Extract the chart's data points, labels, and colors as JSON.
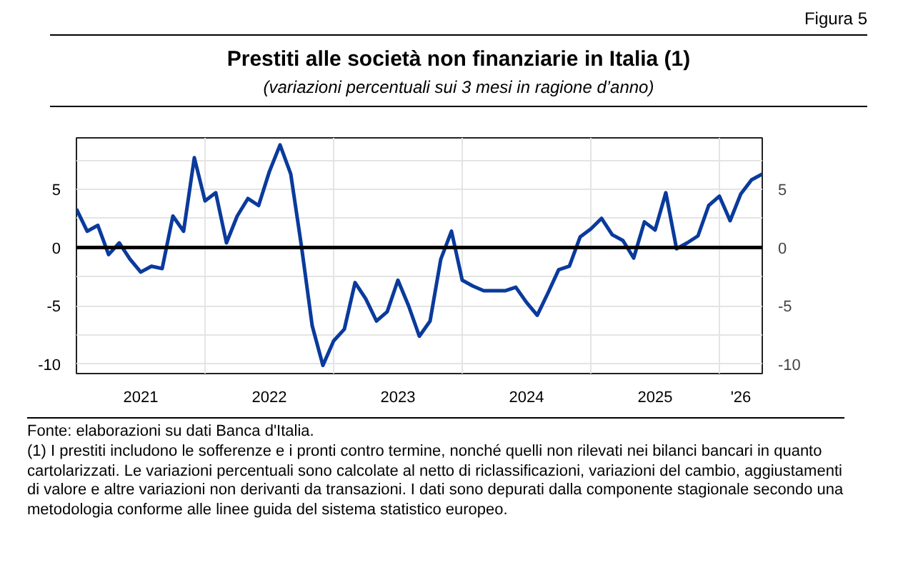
{
  "chart_data": {
    "type": "line",
    "title": "Prestiti alle società non finanziarie in Italia (1)",
    "subtitle": "(variazioni percentuali sui 3 mesi in ragione d’anno)",
    "annotations": [
      "Figura 5",
      "Fonte: elaborazioni su dati Banca d'Italia.",
      "(1) I prestiti includono le sofferenze e i pronti contro termine, nonché quelli non rilevati nei bilanci bancari in quanto cartolarizzati. Le variazioni percentuali sono calcolate al netto di riclassificazioni, variazioni del cambio, aggiustamenti di valore e altre variazioni non derivanti da transazioni. I dati sono depurati dalla componente stagionale secondo una metodologia conforme alle linee guida del sistema statistico europeo."
    ],
    "x": [
      "2021-01",
      "2021-02",
      "2021-03",
      "2021-04",
      "2021-05",
      "2021-06",
      "2021-07",
      "2021-08",
      "2021-09",
      "2021-10",
      "2021-11",
      "2021-12",
      "2022-01",
      "2022-02",
      "2022-03",
      "2022-04",
      "2022-05",
      "2022-06",
      "2022-07",
      "2022-08",
      "2022-09",
      "2022-10",
      "2022-11",
      "2022-12",
      "2023-01",
      "2023-02",
      "2023-03",
      "2023-04",
      "2023-05",
      "2023-06",
      "2023-07",
      "2023-08",
      "2023-09",
      "2023-10",
      "2023-11",
      "2023-12",
      "2024-01",
      "2024-02",
      "2024-03",
      "2024-04",
      "2024-05",
      "2024-06",
      "2024-07",
      "2024-08",
      "2024-09",
      "2024-10",
      "2024-11",
      "2024-12",
      "2025-01",
      "2025-02",
      "2025-03",
      "2025-04",
      "2025-05",
      "2025-06",
      "2025-07",
      "2025-08",
      "2025-09",
      "2025-10",
      "2025-11",
      "2025-12",
      "2026-01",
      "2026-02",
      "2026-03",
      "2026-04",
      "2026-05"
    ],
    "series": [
      {
        "color": "#0a3a9c",
        "values": [
          3.3,
          1.4,
          1.9,
          -0.6,
          0.4,
          -1.0,
          -2.1,
          -1.6,
          -1.8,
          2.7,
          1.4,
          7.7,
          4.0,
          4.7,
          0.4,
          2.7,
          4.2,
          3.6,
          6.5,
          8.8,
          6.3,
          0.1,
          -6.7,
          -10.1,
          -8.0,
          -7.0,
          -3.0,
          -4.4,
          -6.3,
          -5.5,
          -2.8,
          -5.0,
          -7.6,
          -6.3,
          -1.0,
          1.4,
          -2.8,
          -3.3,
          -3.7,
          -3.7,
          -3.7,
          -3.4,
          -4.7,
          -5.8,
          -3.9,
          -1.9,
          -1.6,
          0.9,
          1.6,
          2.5,
          1.1,
          0.6,
          -0.9,
          2.2,
          1.5,
          4.7,
          -0.1,
          0.4,
          1.0,
          3.6,
          4.4,
          2.3,
          4.6,
          5.8,
          6.3
        ]
      }
    ],
    "xlim": [
      "2021-01",
      "2026-05"
    ],
    "xticks": [
      {
        "value": "2021-07",
        "label": "2021"
      },
      {
        "value": "2022-01",
        "label": null
      },
      {
        "value": "2022-07",
        "label": "2022"
      },
      {
        "value": "2023-01",
        "label": null
      },
      {
        "value": "2023-07",
        "label": "2023"
      },
      {
        "value": "2024-01",
        "label": null
      },
      {
        "value": "2024-07",
        "label": "2024"
      },
      {
        "value": "2025-01",
        "label": null
      },
      {
        "value": "2025-07",
        "label": "2025"
      },
      {
        "value": "2026-01",
        "label": null
      },
      {
        "value": "2026-03",
        "label": "'26"
      }
    ],
    "ylim": [
      -10.8,
      9.4
    ],
    "yticks": [
      {
        "value": 7.5,
        "label": null
      },
      5,
      {
        "value": 2.5,
        "label": null
      },
      0,
      {
        "value": -2.5,
        "label": null
      },
      -5,
      {
        "value": -7.5,
        "label": null
      },
      -10
    ],
    "y2lim": [
      -10.8,
      9.4
    ],
    "y2ticks": [
      5,
      0,
      -5,
      -10
    ],
    "ref_lines": [
      {
        "axis": "y",
        "value": 0,
        "color": "#000000"
      }
    ],
    "grid": true,
    "marker": "none",
    "line_style": "solid"
  }
}
